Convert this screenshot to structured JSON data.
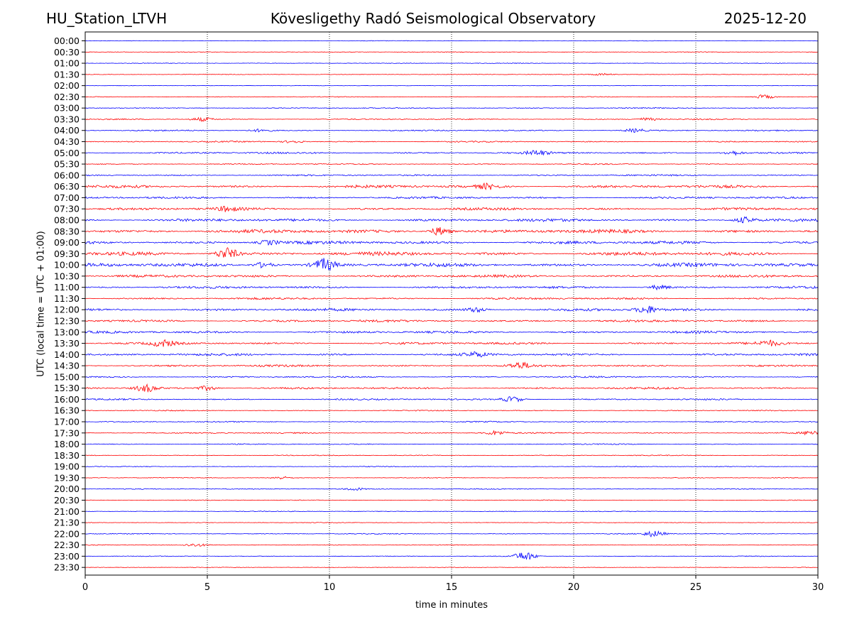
{
  "header": {
    "station": "HU_Station_LTVH",
    "title": "Kövesligethy Radó Seismological Observatory",
    "date": "2025-12-20"
  },
  "chart_data": {
    "type": "line",
    "title": "Kövesligethy Radó Seismological Observatory",
    "xlabel": "time in minutes",
    "ylabel": "UTC (local time = UTC + 01:00)",
    "xlim": [
      0,
      30
    ],
    "x_ticks": [
      0,
      5,
      10,
      15,
      20,
      25,
      30
    ],
    "grid": "vertical dotted at 5-minute ticks",
    "colors": [
      "#0000ff",
      "#ff0000"
    ],
    "rows": [
      "00:00",
      "00:30",
      "01:00",
      "01:30",
      "02:00",
      "02:30",
      "03:00",
      "03:30",
      "04:00",
      "04:30",
      "05:00",
      "05:30",
      "06:00",
      "06:30",
      "07:00",
      "07:30",
      "08:00",
      "08:30",
      "09:00",
      "09:30",
      "10:00",
      "10:30",
      "11:00",
      "11:30",
      "12:00",
      "12:30",
      "13:00",
      "13:30",
      "14:00",
      "14:30",
      "15:00",
      "15:30",
      "16:00",
      "16:30",
      "17:00",
      "17:30",
      "18:00",
      "18:30",
      "19:00",
      "19:30",
      "20:00",
      "20:30",
      "21:00",
      "21:30",
      "22:00",
      "22:30",
      "23:00",
      "23:30"
    ],
    "noise_level": [
      0.4,
      0.5,
      0.5,
      0.5,
      0.4,
      0.6,
      0.8,
      0.9,
      1.0,
      1.0,
      1.4,
      0.9,
      1.2,
      2.2,
      1.6,
      2.0,
      2.2,
      2.8,
      2.4,
      2.8,
      2.8,
      2.0,
      1.8,
      1.6,
      2.0,
      1.8,
      1.8,
      1.8,
      1.8,
      1.6,
      1.2,
      1.6,
      1.2,
      0.8,
      0.9,
      1.0,
      0.8,
      0.7,
      0.6,
      0.6,
      0.7,
      0.6,
      0.6,
      0.5,
      0.7,
      0.6,
      0.6,
      0.5
    ],
    "events": [
      {
        "row": "01:30",
        "minute": 21.2,
        "amp": 1.5
      },
      {
        "row": "02:30",
        "minute": 27.8,
        "amp": 3
      },
      {
        "row": "03:30",
        "minute": 4.8,
        "amp": 2.5
      },
      {
        "row": "03:30",
        "minute": 23.0,
        "amp": 2
      },
      {
        "row": "04:00",
        "minute": 7.2,
        "amp": 2
      },
      {
        "row": "04:00",
        "minute": 22.5,
        "amp": 2.5
      },
      {
        "row": "04:30",
        "minute": 8.5,
        "amp": 2
      },
      {
        "row": "05:00",
        "minute": 18.5,
        "amp": 3
      },
      {
        "row": "05:00",
        "minute": 26.5,
        "amp": 3
      },
      {
        "row": "06:30",
        "minute": 16.5,
        "amp": 3.5
      },
      {
        "row": "07:30",
        "minute": 5.8,
        "amp": 3
      },
      {
        "row": "08:00",
        "minute": 27.0,
        "amp": 4
      },
      {
        "row": "08:30",
        "minute": 14.5,
        "amp": 6
      },
      {
        "row": "09:00",
        "minute": 7.5,
        "amp": 3
      },
      {
        "row": "09:30",
        "minute": 5.8,
        "amp": 8
      },
      {
        "row": "10:00",
        "minute": 9.8,
        "amp": 8
      },
      {
        "row": "10:00",
        "minute": 7.3,
        "amp": 4
      },
      {
        "row": "11:00",
        "minute": 23.5,
        "amp": 3
      },
      {
        "row": "12:00",
        "minute": 23.0,
        "amp": 5
      },
      {
        "row": "12:00",
        "minute": 16.0,
        "amp": 3
      },
      {
        "row": "13:30",
        "minute": 3.2,
        "amp": 4
      },
      {
        "row": "13:30",
        "minute": 28.0,
        "amp": 3
      },
      {
        "row": "14:00",
        "minute": 16.0,
        "amp": 3
      },
      {
        "row": "14:30",
        "minute": 17.8,
        "amp": 4
      },
      {
        "row": "15:30",
        "minute": 2.5,
        "amp": 5
      },
      {
        "row": "15:30",
        "minute": 5.0,
        "amp": 3
      },
      {
        "row": "16:00",
        "minute": 17.5,
        "amp": 4
      },
      {
        "row": "17:30",
        "minute": 16.8,
        "amp": 3
      },
      {
        "row": "17:30",
        "minute": 29.8,
        "amp": 3
      },
      {
        "row": "19:30",
        "minute": 8.0,
        "amp": 2
      },
      {
        "row": "20:00",
        "minute": 11.0,
        "amp": 2
      },
      {
        "row": "22:00",
        "minute": 23.3,
        "amp": 4
      },
      {
        "row": "22:30",
        "minute": 4.5,
        "amp": 2
      },
      {
        "row": "23:00",
        "minute": 18.0,
        "amp": 6
      }
    ]
  }
}
